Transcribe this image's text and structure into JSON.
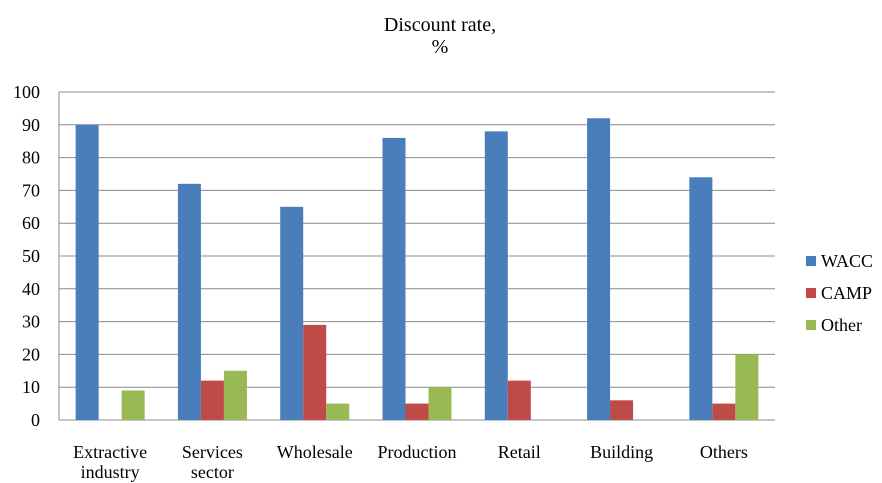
{
  "chart_data": {
    "type": "bar",
    "title": [
      "Discount rate,",
      "%"
    ],
    "categories": [
      [
        "Extractive",
        "industry"
      ],
      [
        "Services",
        "sector"
      ],
      [
        "Wholesale"
      ],
      [
        "Production"
      ],
      [
        "Retail"
      ],
      [
        "Building"
      ],
      [
        "Others"
      ]
    ],
    "series": [
      {
        "name": "WACC",
        "color": "#4a7ebb",
        "values": [
          90,
          72,
          65,
          86,
          88,
          92,
          74
        ]
      },
      {
        "name": "CAMP",
        "color": "#be4b48",
        "values": [
          0,
          12,
          29,
          5,
          12,
          6,
          5
        ]
      },
      {
        "name": "Other",
        "color": "#98b954",
        "values": [
          9,
          15,
          5,
          10,
          0,
          0,
          20
        ]
      }
    ],
    "ylim": [
      0,
      100
    ],
    "yticks": [
      0,
      10,
      20,
      30,
      40,
      50,
      60,
      70,
      80,
      90,
      100
    ],
    "grid": true,
    "legend_position": "right"
  }
}
